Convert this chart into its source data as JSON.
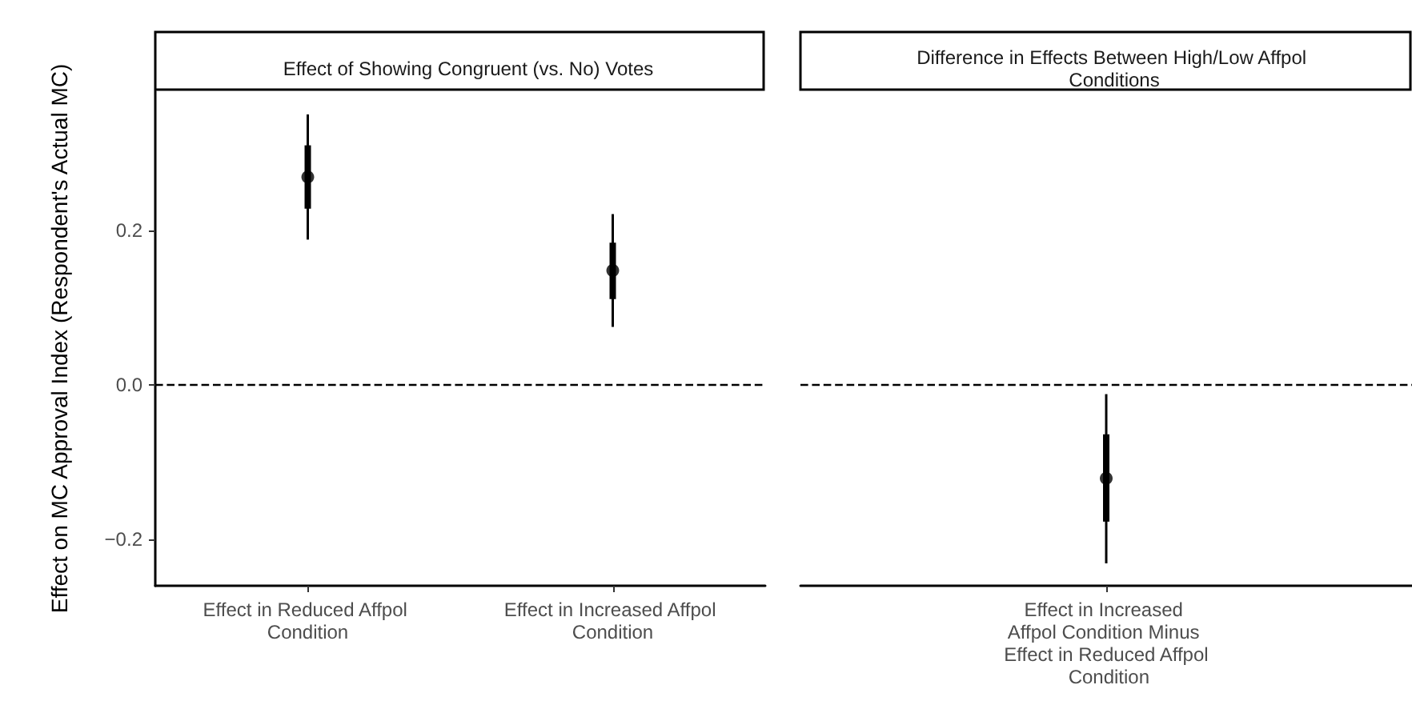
{
  "chart_data": [
    {
      "type": "scatter",
      "title": "Effect of Showing Congruent (vs. No) Votes",
      "ylabel": "Effect on MC Approval Index (Respondent's Actual MC)",
      "categories": [
        "Effect in Reduced Affpol Condition",
        "Effect in Increased Affpol Condition"
      ],
      "series": [
        {
          "type": "bar",
          "color": "#000000",
          "base": [
            0.228,
            0.111
          ],
          "values": [
            0.082,
            0.073
          ]
        },
        {
          "color": "#000000",
          "marker": "circle",
          "values": [
            0.269,
            0.148
          ],
          "errors": [
            [
              0.188,
              0.35
            ],
            [
              0.075,
              0.221
            ]
          ]
        }
      ],
      "ylim": [
        -0.26,
        0.38
      ],
      "yticks": [
        {
          "value": -0.2,
          "label": "−0.2"
        },
        {
          "value": 0,
          "label": "0.0"
        },
        0.2
      ],
      "grid": false,
      "ref_lines": [
        {
          "axis": "y",
          "value": 0,
          "line_style": "dashed",
          "color": "#000000"
        }
      ]
    },
    {
      "type": "scatter",
      "title": "Difference in Effects Between High/Low Affpol Conditions",
      "categories": [
        "Effect in Increased Affpol Condition Minus Effect in Reduced Affpol Condition"
      ],
      "series": [
        {
          "type": "bar",
          "color": "#000000",
          "base": [
            -0.177
          ],
          "values": [
            0.113
          ]
        },
        {
          "color": "#000000",
          "marker": "circle",
          "values": [
            -0.121
          ],
          "errors": [
            [
              -0.231,
              -0.012
            ]
          ]
        }
      ],
      "ylim": [
        -0.26,
        0.38
      ],
      "grid": false,
      "tick_labels": "x",
      "ref_lines": [
        {
          "axis": "y",
          "value": 0,
          "line_style": "dashed",
          "color": "#000000"
        }
      ]
    }
  ]
}
